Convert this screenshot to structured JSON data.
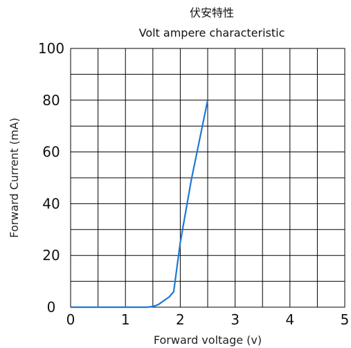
{
  "chart_data": {
    "type": "line",
    "title": "伏安特性",
    "subtitle": "Volt ampere characteristic",
    "xlabel": "Forward  voltage  (v)",
    "ylabel": "Forward Current  (mA)",
    "xlim": [
      0,
      5
    ],
    "ylim": [
      0,
      100
    ],
    "xticks": [
      "0",
      "1",
      "2",
      "3",
      "4",
      "5"
    ],
    "yticks": [
      "0",
      "20",
      "40",
      "60",
      "80",
      "100"
    ],
    "grid": true,
    "legend": "none",
    "series": [
      {
        "color": "#1f77d4",
        "x": [
          0,
          1.4,
          1.5,
          1.6,
          1.7,
          1.8,
          1.88,
          2.0,
          2.2,
          2.5
        ],
        "y": [
          0,
          0,
          0.3,
          1,
          2.5,
          4,
          6,
          25,
          49,
          80
        ]
      }
    ]
  }
}
